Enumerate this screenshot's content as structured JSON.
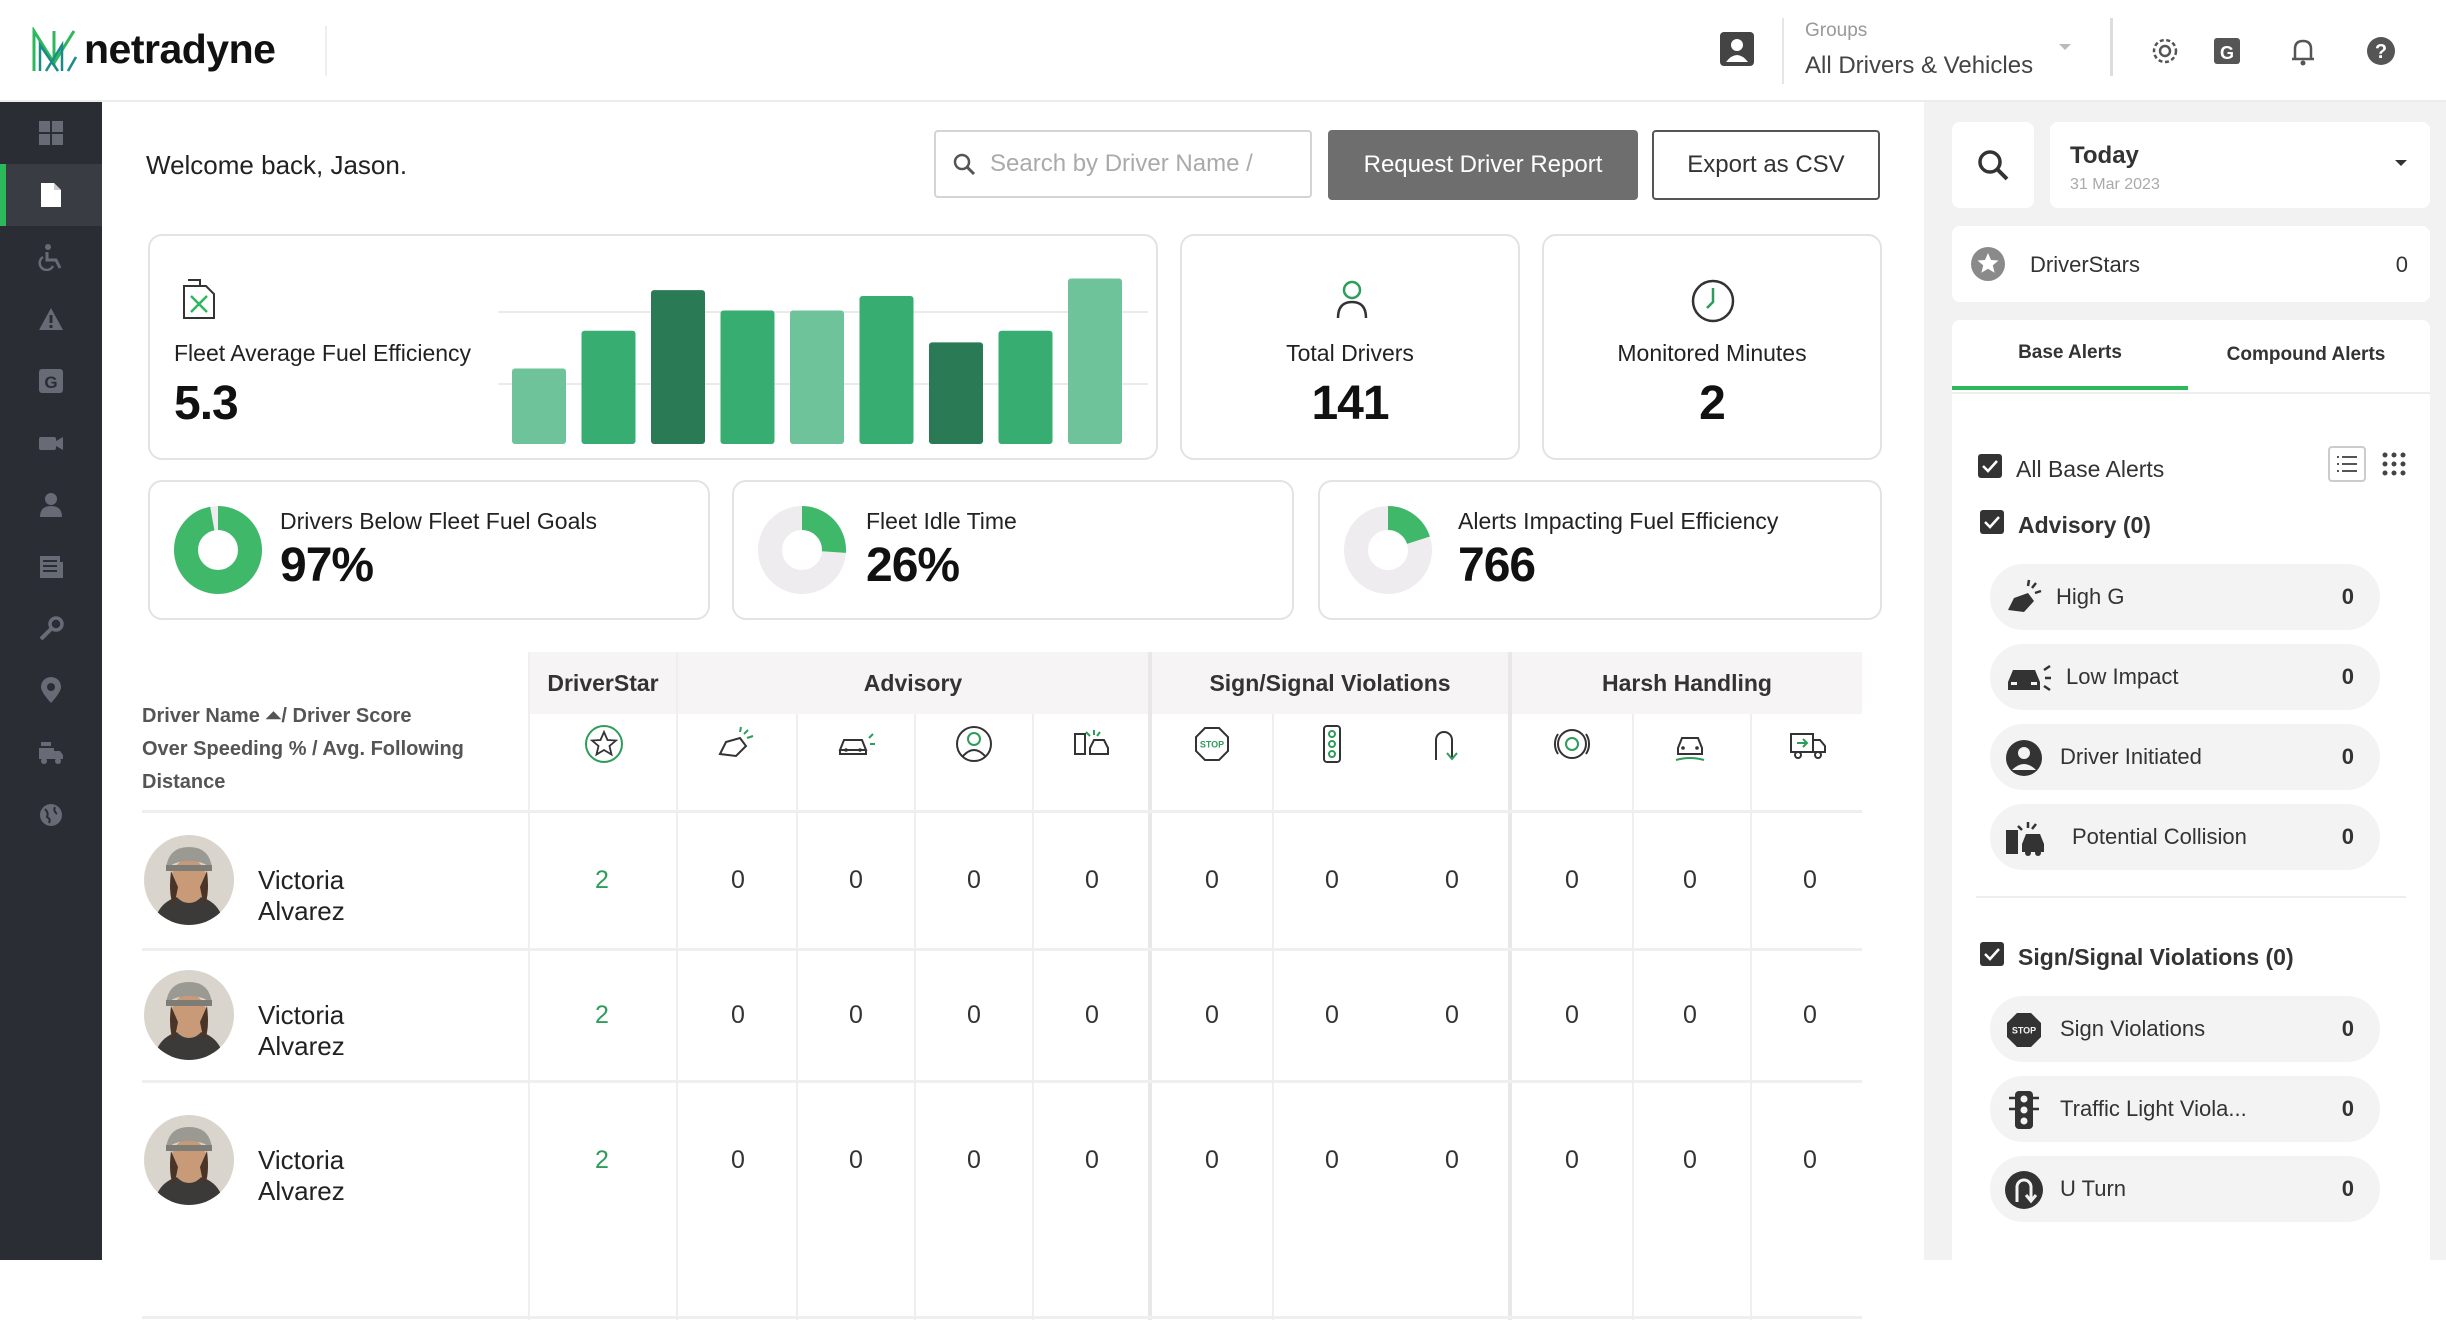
{
  "header": {
    "brand": "netradyne",
    "groups_label": "Groups",
    "groups_value": "All Drivers & Vehicles"
  },
  "main": {
    "welcome": "Welcome back, Jason.",
    "search_placeholder": "Search by Driver Name / ",
    "request_report_label": "Request Driver Report",
    "export_csv_label": "Export as CSV"
  },
  "cards": {
    "fuel_efficiency": {
      "label": "Fleet Average Fuel Efficiency",
      "value": "5.3"
    },
    "total_drivers": {
      "label": "Total Drivers",
      "value": "141"
    },
    "monitored_minutes": {
      "label": "Monitored Minutes",
      "value": "2"
    },
    "below_goals": {
      "label": "Drivers Below Fleet Fuel Goals",
      "value": "97%",
      "fraction": 0.97
    },
    "idle_time": {
      "label": "Fleet Idle Time",
      "value": "26%",
      "fraction": 0.26
    },
    "alerts_impacting": {
      "label": "Alerts Impacting Fuel Efficiency",
      "value": "766",
      "fraction": 0.2
    }
  },
  "chart_data": {
    "type": "bar",
    "values": [
      26,
      39,
      53,
      46,
      46,
      51,
      35,
      39,
      57
    ],
    "colors": [
      "#6fc39a",
      "#37ad72",
      "#2a7a56",
      "#37ad72",
      "#6fc39a",
      "#37ad72",
      "#2a7a56",
      "#37ad72",
      "#6fc39a"
    ],
    "ylim": [
      0,
      80
    ]
  },
  "table": {
    "driver_header_line1": "Driver Name ⏶/ Driver Score",
    "driver_header_line2": "Over Speeding % / Avg. Following",
    "driver_header_line3": "Distance",
    "groups": [
      "DriverStar",
      "Advisory",
      "Sign/Signal Violations",
      "Harsh Handling"
    ],
    "column_icons": [
      "star-icon",
      "high-g-icon",
      "low-impact-icon",
      "driver-initiated-icon",
      "potential-collision-icon",
      "stop-sign-icon",
      "traffic-light-icon",
      "u-turn-icon",
      "hard-braking-icon",
      "hard-turn-icon",
      "hard-acceleration-icon"
    ],
    "rows": [
      {
        "name": "Victoria Alvarez",
        "values": [
          "2",
          "0",
          "0",
          "0",
          "0",
          "0",
          "0",
          "0",
          "0",
          "0",
          "0"
        ]
      },
      {
        "name": "Victoria Alvarez",
        "values": [
          "2",
          "0",
          "0",
          "0",
          "0",
          "0",
          "0",
          "0",
          "0",
          "0",
          "0"
        ]
      },
      {
        "name": "Victoria Alvarez",
        "values": [
          "2",
          "0",
          "0",
          "0",
          "0",
          "0",
          "0",
          "0",
          "0",
          "0",
          "0"
        ]
      }
    ]
  },
  "right": {
    "date_title": "Today",
    "date_sub": "31 Mar 2023",
    "driverstars_label": "DriverStars",
    "driverstars_value": "0",
    "tab_base": "Base Alerts",
    "tab_compound": "Compound Alerts",
    "all_base_alerts": "All Base Alerts",
    "advisory_head": "Advisory (0)",
    "advisory": [
      {
        "name": "High G",
        "value": "0"
      },
      {
        "name": "Low Impact",
        "value": "0"
      },
      {
        "name": "Driver Initiated",
        "value": "0"
      },
      {
        "name": "Potential Collision",
        "value": "0"
      }
    ],
    "sign_head": "Sign/Signal Violations (0)",
    "sign": [
      {
        "name": "Sign Violations",
        "value": "0"
      },
      {
        "name": "Traffic Light Viola...",
        "value": "0"
      },
      {
        "name": "U Turn",
        "value": "0"
      }
    ]
  }
}
